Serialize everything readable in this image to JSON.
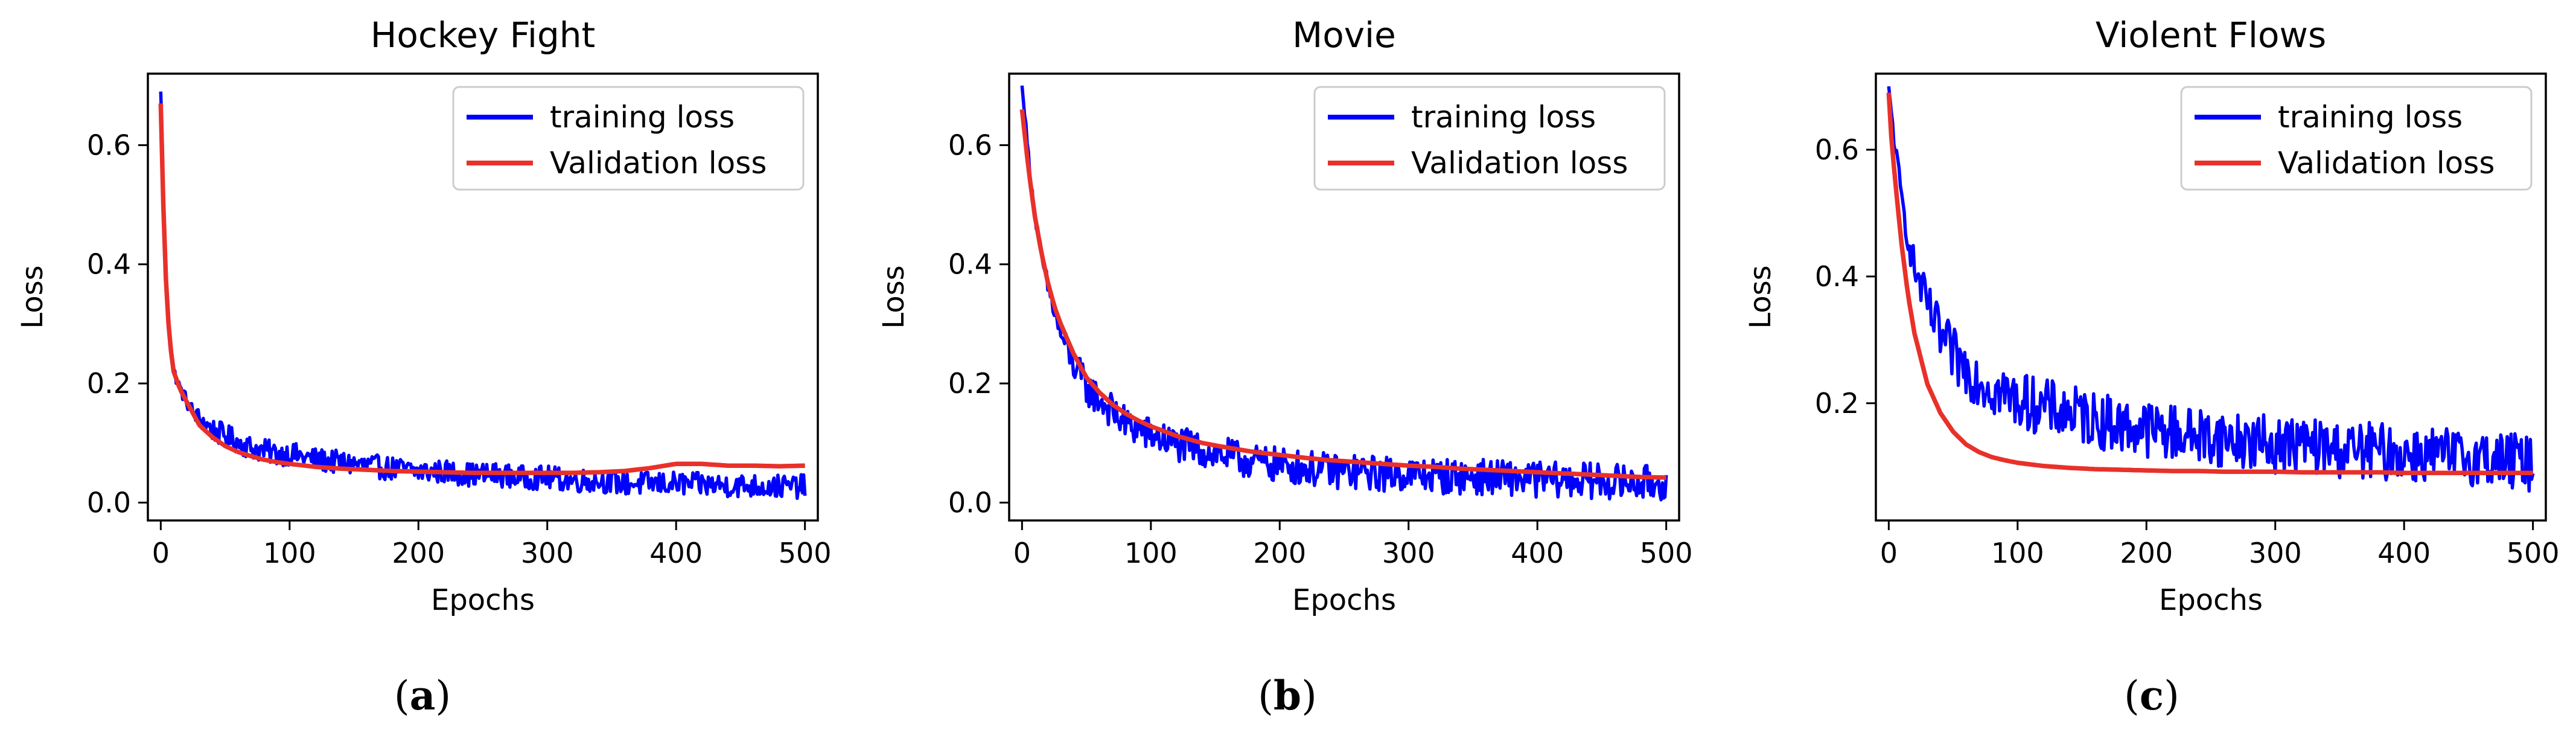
{
  "chart_data": [
    {
      "type": "line",
      "title": "Hockey Fight",
      "xlabel": "Epochs",
      "ylabel": "Loss",
      "xlim": [
        -10,
        510
      ],
      "ylim": [
        -0.03,
        0.72
      ],
      "xticks": [
        0,
        100,
        200,
        300,
        400,
        500
      ],
      "yticks": [
        0.0,
        0.2,
        0.4,
        0.6
      ],
      "xtick_labels": [
        "0",
        "100",
        "200",
        "300",
        "400",
        "500"
      ],
      "ytick_labels": [
        "0.0",
        "0.2",
        "0.4",
        "0.6"
      ],
      "legend_position": "top-right",
      "caption": "a",
      "series": [
        {
          "name": "training loss",
          "color": "#0000ff",
          "x": [
            0,
            1,
            2,
            3,
            5,
            7,
            10,
            15,
            20,
            25,
            30,
            40,
            50,
            60,
            70,
            80,
            90,
            100,
            120,
            140,
            160,
            180,
            200,
            220,
            240,
            260,
            280,
            300,
            320,
            340,
            360,
            380,
            400,
            420,
            440,
            460,
            480,
            500
          ],
          "values": [
            0.69,
            0.62,
            0.52,
            0.44,
            0.34,
            0.27,
            0.22,
            0.19,
            0.17,
            0.15,
            0.14,
            0.12,
            0.11,
            0.1,
            0.09,
            0.085,
            0.08,
            0.08,
            0.07,
            0.065,
            0.06,
            0.055,
            0.05,
            0.05,
            0.045,
            0.045,
            0.04,
            0.04,
            0.035,
            0.035,
            0.03,
            0.03,
            0.03,
            0.028,
            0.027,
            0.026,
            0.025,
            0.025
          ],
          "noise": 0.02
        },
        {
          "name": "Validation loss",
          "color": "#e8312a",
          "x": [
            0,
            1,
            2,
            3,
            5,
            7,
            10,
            15,
            20,
            25,
            30,
            40,
            50,
            60,
            70,
            80,
            90,
            100,
            120,
            140,
            160,
            180,
            200,
            220,
            240,
            260,
            280,
            300,
            320,
            340,
            360,
            380,
            400,
            420,
            440,
            460,
            480,
            500
          ],
          "values": [
            0.67,
            0.6,
            0.5,
            0.42,
            0.33,
            0.27,
            0.22,
            0.19,
            0.17,
            0.15,
            0.13,
            0.11,
            0.095,
            0.085,
            0.078,
            0.072,
            0.068,
            0.065,
            0.06,
            0.057,
            0.055,
            0.053,
            0.052,
            0.051,
            0.05,
            0.05,
            0.05,
            0.05,
            0.05,
            0.051,
            0.053,
            0.058,
            0.065,
            0.065,
            0.062,
            0.062,
            0.061,
            0.062
          ]
        }
      ]
    },
    {
      "type": "line",
      "title": "Movie",
      "xlabel": "Epochs",
      "ylabel": "Loss",
      "xlim": [
        -10,
        510
      ],
      "ylim": [
        -0.03,
        0.72
      ],
      "xticks": [
        0,
        100,
        200,
        300,
        400,
        500
      ],
      "yticks": [
        0.0,
        0.2,
        0.4,
        0.6
      ],
      "xtick_labels": [
        "0",
        "100",
        "200",
        "300",
        "400",
        "500"
      ],
      "ytick_labels": [
        "0.0",
        "0.2",
        "0.4",
        "0.6"
      ],
      "legend_position": "top-right",
      "caption": "b",
      "series": [
        {
          "name": "training loss",
          "color": "#0000ff",
          "x": [
            0,
            2,
            5,
            10,
            15,
            20,
            25,
            30,
            40,
            50,
            60,
            70,
            80,
            90,
            100,
            120,
            140,
            160,
            180,
            200,
            220,
            240,
            260,
            280,
            300,
            320,
            340,
            360,
            380,
            400,
            420,
            440,
            460,
            480,
            500
          ],
          "values": [
            0.7,
            0.65,
            0.58,
            0.48,
            0.41,
            0.36,
            0.32,
            0.28,
            0.23,
            0.19,
            0.17,
            0.15,
            0.13,
            0.12,
            0.11,
            0.095,
            0.085,
            0.075,
            0.065,
            0.06,
            0.055,
            0.05,
            0.048,
            0.045,
            0.045,
            0.042,
            0.04,
            0.04,
            0.038,
            0.036,
            0.035,
            0.034,
            0.032,
            0.03,
            0.03
          ],
          "noise": 0.03
        },
        {
          "name": "Validation loss",
          "color": "#e8312a",
          "x": [
            0,
            2,
            5,
            10,
            15,
            20,
            25,
            30,
            40,
            50,
            60,
            70,
            80,
            90,
            100,
            120,
            140,
            160,
            180,
            200,
            220,
            240,
            260,
            280,
            300,
            320,
            340,
            360,
            380,
            400,
            420,
            440,
            460,
            480,
            500
          ],
          "values": [
            0.66,
            0.62,
            0.56,
            0.48,
            0.42,
            0.37,
            0.33,
            0.3,
            0.25,
            0.21,
            0.185,
            0.165,
            0.15,
            0.138,
            0.128,
            0.112,
            0.1,
            0.092,
            0.085,
            0.08,
            0.075,
            0.071,
            0.068,
            0.065,
            0.062,
            0.06,
            0.057,
            0.055,
            0.053,
            0.051,
            0.049,
            0.047,
            0.045,
            0.043,
            0.042
          ]
        }
      ]
    },
    {
      "type": "line",
      "title": "Violent Flows",
      "xlabel": "Epochs",
      "ylabel": "Loss",
      "xlim": [
        -10,
        510
      ],
      "ylim": [
        0.015,
        0.72
      ],
      "xticks": [
        0,
        100,
        200,
        300,
        400,
        500
      ],
      "yticks": [
        0.2,
        0.4,
        0.6
      ],
      "xtick_labels": [
        "0",
        "100",
        "200",
        "300",
        "400",
        "500"
      ],
      "ytick_labels": [
        "0.2",
        "0.4",
        "0.6"
      ],
      "legend_position": "top-right",
      "caption": "c",
      "series": [
        {
          "name": "training loss",
          "color": "#0000ff",
          "x": [
            0,
            2,
            5,
            10,
            15,
            20,
            30,
            40,
            50,
            60,
            80,
            100,
            120,
            140,
            160,
            180,
            200,
            220,
            240,
            260,
            280,
            300,
            320,
            340,
            360,
            380,
            400,
            420,
            440,
            460,
            480,
            500
          ],
          "values": [
            0.7,
            0.66,
            0.6,
            0.52,
            0.46,
            0.41,
            0.35,
            0.3,
            0.27,
            0.25,
            0.22,
            0.2,
            0.19,
            0.18,
            0.17,
            0.16,
            0.155,
            0.15,
            0.145,
            0.14,
            0.135,
            0.13,
            0.13,
            0.125,
            0.12,
            0.12,
            0.115,
            0.115,
            0.11,
            0.11,
            0.105,
            0.1
          ],
          "noise": 0.045
        },
        {
          "name": "Validation loss",
          "color": "#e8312a",
          "x": [
            0,
            2,
            5,
            10,
            15,
            20,
            30,
            40,
            50,
            60,
            70,
            80,
            90,
            100,
            120,
            140,
            160,
            180,
            200,
            220,
            240,
            260,
            280,
            300,
            320,
            340,
            360,
            380,
            400,
            420,
            440,
            460,
            480,
            500
          ],
          "values": [
            0.69,
            0.62,
            0.55,
            0.45,
            0.37,
            0.31,
            0.23,
            0.185,
            0.155,
            0.135,
            0.123,
            0.115,
            0.11,
            0.106,
            0.101,
            0.098,
            0.096,
            0.095,
            0.094,
            0.093,
            0.093,
            0.092,
            0.092,
            0.092,
            0.091,
            0.091,
            0.091,
            0.091,
            0.09,
            0.09,
            0.09,
            0.09,
            0.09,
            0.09
          ]
        }
      ]
    }
  ]
}
